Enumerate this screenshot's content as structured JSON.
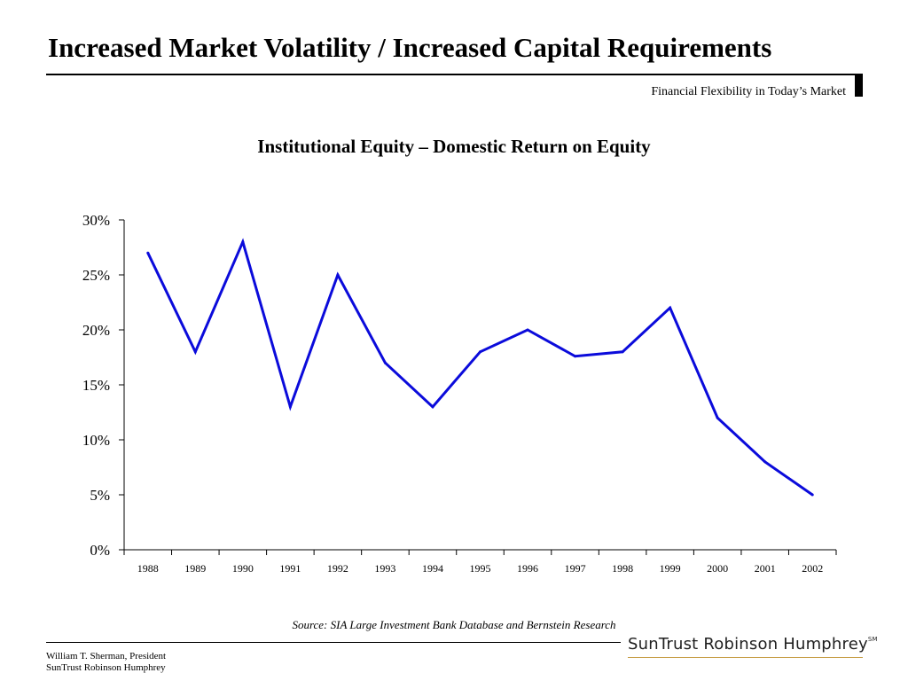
{
  "header": {
    "title": "Increased Market Volatility / Increased Capital Requirements",
    "subtitle": "Financial Flexibility in Today’s Market"
  },
  "footer": {
    "source": "Source: SIA Large Investment Bank Database and Bernstein Research",
    "author_line1": "William T. Sherman, President",
    "author_line2": "SunTrust Robinson Humphrey",
    "logo_text": "SunTrust Robinson Humphrey",
    "logo_mark": "SM"
  },
  "colors": {
    "line": "#0b0bdb",
    "logo_underline": "#c8a04a"
  },
  "chart_data": {
    "type": "line",
    "title": "Institutional Equity – Domestic Return on Equity",
    "xlabel": "",
    "ylabel": "",
    "categories": [
      "1988",
      "1989",
      "1990",
      "1991",
      "1992",
      "1993",
      "1994",
      "1995",
      "1996",
      "1997",
      "1998",
      "1999",
      "2000",
      "2001",
      "2002"
    ],
    "series": [
      {
        "values": [
          27,
          18,
          28,
          13,
          25,
          17,
          13,
          18,
          20,
          17.6,
          18,
          22,
          12,
          8,
          5
        ]
      }
    ],
    "ylim": [
      0,
      30
    ],
    "yticks": [
      0,
      5,
      10,
      15,
      20,
      25,
      30
    ],
    "ytick_labels": [
      "0%",
      "5%",
      "10%",
      "15%",
      "20%",
      "25%",
      "30%"
    ],
    "grid": false,
    "legend": "none"
  }
}
